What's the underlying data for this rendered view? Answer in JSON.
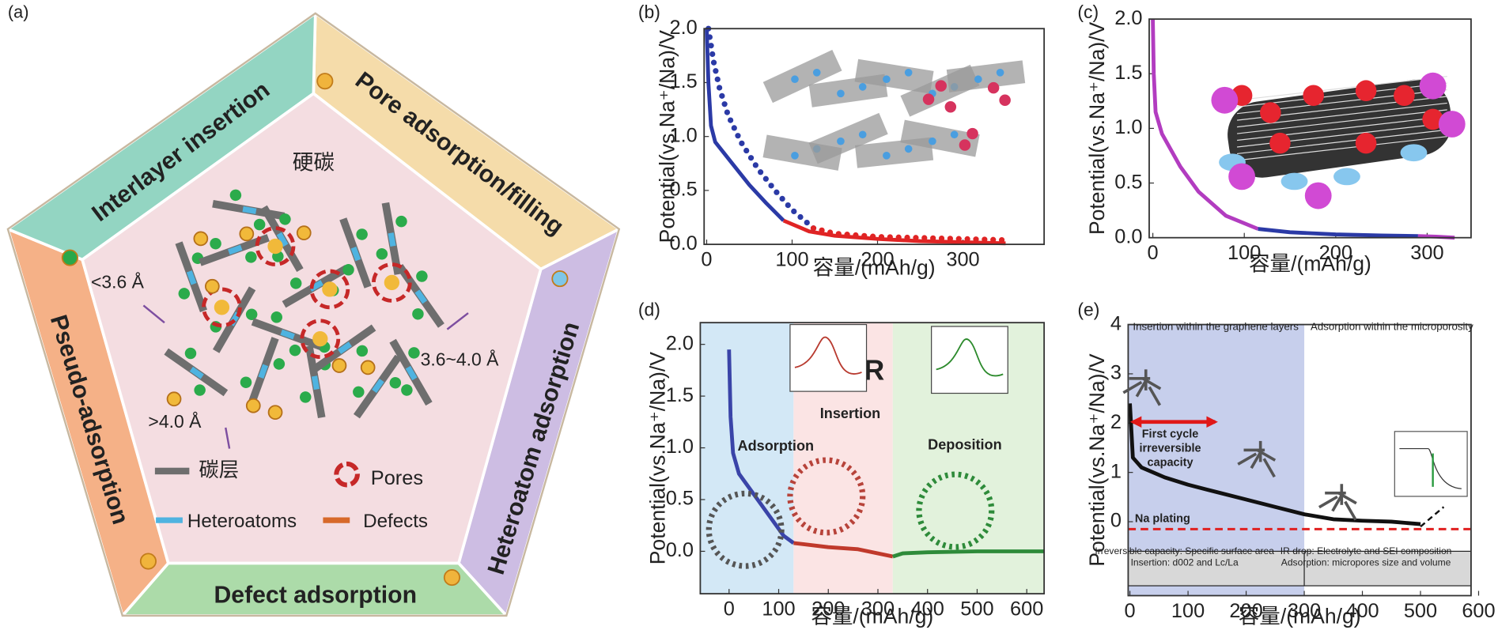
{
  "diagram": {
    "label": "(a)",
    "center_label": "硬碳",
    "sides": [
      "Interlayer insertion",
      "Pore adsorption/filling",
      "Heteroatom adsorption",
      "Defect adsorption",
      "Pseudo-adsorption"
    ],
    "spacings": [
      "<3.6 Å",
      "3.6~4.0 Å",
      ">4.0 Å"
    ],
    "legend": [
      "碳层",
      "Pores",
      "Heteroatoms",
      "Defects"
    ]
  },
  "chart_data": [
    {
      "type": "line",
      "panel_label": "(b)",
      "x_label": "容量/(mAh/g)",
      "y_label": "Potential(vs.Na⁺/Na)/V",
      "xlim": [
        -3,
        395
      ],
      "ylim": [
        0,
        2
      ],
      "xticks": [
        0,
        100,
        200,
        300
      ],
      "yticks": [
        {
          "value": 0,
          "label": "0.0"
        },
        0.5,
        {
          "value": 1,
          "label": "1.0"
        },
        1.5,
        {
          "value": 2,
          "label": "2.0"
        }
      ],
      "series": [
        {
          "color": "#2b3aa6",
          "style": "solid",
          "x": [
            0,
            2,
            5,
            10,
            30,
            50,
            70,
            90
          ],
          "values": [
            2.0,
            1.5,
            1.1,
            0.95,
            0.75,
            0.55,
            0.38,
            0.22
          ]
        },
        {
          "color": "#e02424",
          "style": "solid",
          "x": [
            90,
            120,
            150,
            200,
            250,
            300,
            350
          ],
          "values": [
            0.22,
            0.12,
            0.08,
            0.05,
            0.03,
            0.02,
            0.01
          ]
        },
        {
          "color": "#2b3aa6",
          "style": "dotted",
          "x": [
            2,
            8,
            15,
            25,
            40,
            60,
            80,
            100,
            125
          ],
          "values": [
            2.0,
            1.7,
            1.45,
            1.2,
            0.95,
            0.7,
            0.5,
            0.32,
            0.15
          ]
        },
        {
          "color": "#e02424",
          "style": "dotted",
          "x": [
            125,
            150,
            200,
            250,
            300,
            350
          ],
          "values": [
            0.15,
            0.1,
            0.07,
            0.06,
            0.05,
            0.04
          ]
        }
      ]
    },
    {
      "type": "line",
      "panel_label": "(c)",
      "x_label": "容量/(mAh/g)",
      "y_label": "Potential(vs.Na⁺/Na)/V",
      "xlim": [
        -4,
        348
      ],
      "ylim": [
        0,
        2
      ],
      "xticks": [
        0,
        100,
        200,
        300
      ],
      "yticks": [
        {
          "value": 0,
          "label": "0.0"
        },
        0.5,
        {
          "value": 1,
          "label": "1.0"
        },
        1.5,
        {
          "value": 2,
          "label": "2.0"
        }
      ],
      "series": [
        {
          "color": "#b23cc0",
          "style": "solid",
          "x": [
            0,
            1,
            3,
            10,
            30,
            50,
            80,
            115
          ],
          "values": [
            2.0,
            1.5,
            1.15,
            0.95,
            0.65,
            0.42,
            0.2,
            0.08
          ]
        },
        {
          "color": "#2b3aa6",
          "style": "solid",
          "x": [
            115,
            150,
            200,
            250,
            290
          ],
          "values": [
            0.08,
            0.05,
            0.03,
            0.02,
            0.015
          ]
        },
        {
          "color": "#b23cc0",
          "style": "solid",
          "x": [
            290,
            310,
            330
          ],
          "values": [
            0.015,
            0.01,
            0.0
          ]
        }
      ]
    },
    {
      "type": "line",
      "panel_label": "(d)",
      "x_label": "容量/(mAh/g)",
      "y_label": "Potential(vs.Na⁺/Na)/V",
      "xlim": [
        -58,
        635
      ],
      "ylim": [
        -0.41,
        2.21
      ],
      "xticks": [
        0,
        100,
        200,
        300,
        400,
        500,
        600
      ],
      "yticks": [
        {
          "value": 0,
          "label": "0.0"
        },
        0.5,
        {
          "value": 1,
          "label": "1.0"
        },
        1.5,
        {
          "value": 2,
          "label": "2.0"
        }
      ],
      "regions": [
        {
          "x": [
            -58,
            130
          ],
          "color": "#d3e8f6"
        },
        {
          "x": [
            130,
            330
          ],
          "color": "#fbe4e4"
        },
        {
          "x": [
            330,
            635
          ],
          "color": "#e2f2dc"
        }
      ],
      "annotations": [
        "EPR",
        "Adsorption",
        "Insertion",
        "Deposition"
      ],
      "series": [
        {
          "color": "#3a44a8",
          "style": "solid",
          "x": [
            0,
            3,
            8,
            20,
            50,
            80,
            110,
            130
          ],
          "values": [
            1.95,
            1.3,
            0.95,
            0.75,
            0.55,
            0.35,
            0.15,
            0.08
          ]
        },
        {
          "color": "#c0392b",
          "style": "solid",
          "x": [
            130,
            200,
            260,
            330
          ],
          "values": [
            0.08,
            0.04,
            0.02,
            -0.05
          ]
        },
        {
          "color": "#2e8b3a",
          "style": "solid",
          "x": [
            330,
            350,
            400,
            500,
            635
          ],
          "values": [
            -0.05,
            -0.02,
            -0.01,
            0.0,
            0.0
          ]
        }
      ]
    },
    {
      "type": "line",
      "panel_label": "(e)",
      "x_label": "容量/(mAh/g)",
      "y_label": "Potential(vs.Na⁺/Na)/V",
      "xlim": [
        -3,
        587
      ],
      "ylim": [
        -1.5,
        4
      ],
      "xticks": [
        0,
        100,
        200,
        300,
        400,
        500,
        600
      ],
      "yticks": [
        0,
        1,
        2,
        3,
        4
      ],
      "regions": [
        {
          "x": [
            -3,
            300
          ],
          "color": "#c7cfec"
        }
      ],
      "hline": {
        "value": -0.15,
        "color": "#e02020"
      },
      "annotations": [
        "Insertion within the graphene layers",
        "Adsorption within the microporosity",
        "First cycle",
        "irreversible",
        "capacity",
        "IR drop",
        "Na plating",
        "Irreversible capacity: Specific surface area",
        "Insertion: d002 and Lc/La",
        "IR drop: Electrolyte and SEI composition",
        "Adsorption: micropores size and volume"
      ],
      "series": [
        {
          "color": "#111111",
          "style": "solid",
          "x": [
            0,
            5,
            20,
            60,
            100,
            150,
            200,
            250,
            300,
            350,
            400,
            450,
            500
          ],
          "values": [
            2.4,
            1.3,
            1.1,
            0.9,
            0.75,
            0.6,
            0.45,
            0.3,
            0.15,
            0.05,
            0.02,
            0.0,
            -0.05
          ]
        },
        {
          "color": "#111111",
          "style": "dashed",
          "x": [
            500,
            520,
            540
          ],
          "values": [
            -0.1,
            0.1,
            0.3
          ]
        }
      ]
    }
  ]
}
